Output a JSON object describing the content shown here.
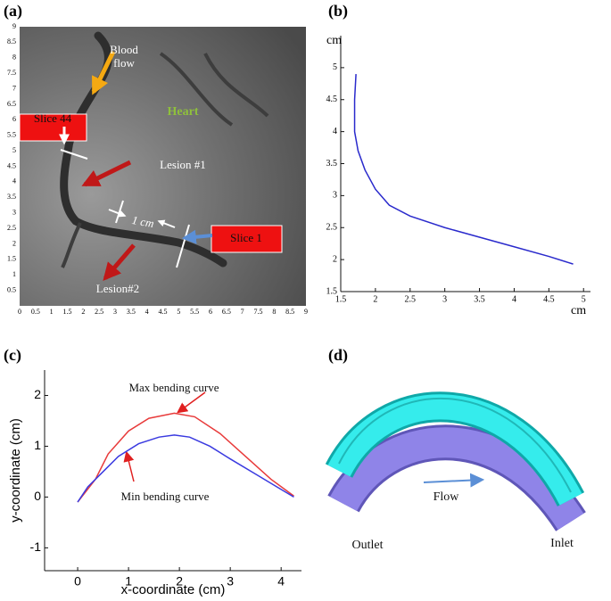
{
  "chart_data": [
    {
      "type": "image",
      "label": "(a)",
      "xlim": [
        0,
        9
      ],
      "ylim": [
        0,
        9
      ],
      "xticks": [
        0,
        0.5,
        1,
        1.5,
        2,
        2.5,
        3,
        3.5,
        4,
        4.5,
        5,
        5.5,
        6,
        6.5,
        7,
        7.5,
        8,
        8.5,
        9
      ],
      "yticks": [
        0.5,
        1,
        1.5,
        2,
        2.5,
        3,
        3.5,
        4,
        4.5,
        5,
        5.5,
        6,
        6.5,
        7,
        7.5,
        8,
        8.5,
        9
      ],
      "annotations": [
        "Blood flow",
        "Heart",
        "Slice 44",
        "Lesion #1",
        "1 cm",
        "Slice 1",
        "Lesion#2"
      ]
    },
    {
      "type": "line",
      "label": "(b)",
      "xlabel": "cm",
      "ylabel": "cm",
      "xlim": [
        1.5,
        5.1
      ],
      "ylim": [
        1.5,
        5.5
      ],
      "xticks": [
        1.5,
        2,
        2.5,
        3,
        3.5,
        4,
        4.5,
        5
      ],
      "yticks": [
        1.5,
        2,
        2.5,
        3,
        3.5,
        4,
        4.5,
        5
      ],
      "series": [
        {
          "color": "#2a2acc",
          "x": [
            1.72,
            1.7,
            1.7,
            1.75,
            1.85,
            2.0,
            2.2,
            2.5,
            3.0,
            3.5,
            4.0,
            4.5,
            4.85
          ],
          "values": [
            4.9,
            4.5,
            4.0,
            3.7,
            3.4,
            3.1,
            2.85,
            2.68,
            2.5,
            2.35,
            2.2,
            2.05,
            1.93
          ]
        }
      ]
    },
    {
      "type": "line",
      "label": "(c)",
      "xlabel": "x-coordinate (cm)",
      "ylabel": "y-coordinate (cm)",
      "xlim": [
        -0.65,
        4.4
      ],
      "ylim": [
        -1.45,
        2.5
      ],
      "xticks": [
        0,
        1,
        2,
        3,
        4
      ],
      "yticks": [
        -1,
        0,
        1,
        2
      ],
      "annotations": [
        "Max bending curve",
        "Min bending curve"
      ],
      "series": [
        {
          "color": "#e83a3a",
          "x": [
            0,
            0.35,
            0.6,
            1.0,
            1.4,
            1.9,
            2.3,
            2.8,
            3.3,
            3.8,
            4.25
          ],
          "values": [
            -0.1,
            0.35,
            0.85,
            1.3,
            1.55,
            1.65,
            1.58,
            1.25,
            0.8,
            0.35,
            0.02
          ]
        },
        {
          "color": "#3a3ae0",
          "x": [
            0,
            0.2,
            0.5,
            0.8,
            1.2,
            1.6,
            1.9,
            2.2,
            2.6,
            3.0,
            3.5,
            4.0,
            4.25
          ],
          "values": [
            -0.1,
            0.2,
            0.5,
            0.8,
            1.05,
            1.18,
            1.22,
            1.18,
            1.0,
            0.75,
            0.45,
            0.15,
            0.0
          ]
        }
      ]
    }
  ],
  "panel_d": {
    "label": "(d)",
    "flow": "Flow",
    "outlet": "Outlet",
    "inlet": "Inlet"
  }
}
